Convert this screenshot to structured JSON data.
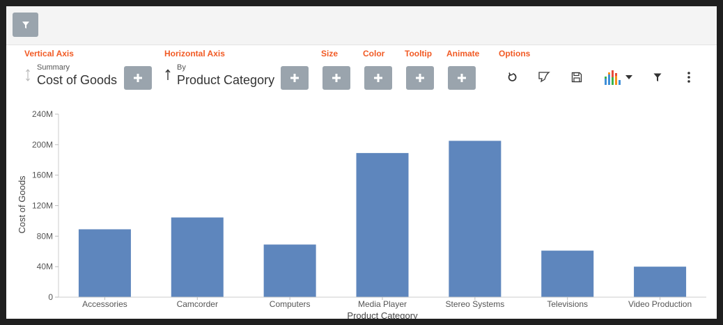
{
  "toolbar": {
    "filter_icon": "filter-icon"
  },
  "encodings": {
    "vertical_axis": {
      "label": "Vertical Axis",
      "sub": "Summary",
      "value": "Cost of Goods"
    },
    "horizontal_axis": {
      "label": "Horizontal Axis",
      "sub": "By",
      "value": "Product Category"
    },
    "size": {
      "label": "Size"
    },
    "color": {
      "label": "Color"
    },
    "tooltip": {
      "label": "Tooltip"
    },
    "animate": {
      "label": "Animate"
    },
    "options": {
      "label": "Options"
    }
  },
  "options_icons": [
    "refresh-icon",
    "annotate-icon",
    "save-icon",
    "chart-type-icon",
    "filter-icon",
    "more-vertical-icon"
  ],
  "colors": {
    "accent": "#f15a24",
    "bar": "#5e86bd",
    "button": "#9aa4ad"
  },
  "chart_data": {
    "type": "bar",
    "categories": [
      "Accessories",
      "Camcorder",
      "Computers",
      "Media Player",
      "Stereo Systems",
      "Televisions",
      "Video Production"
    ],
    "values": [
      89000000,
      104500000,
      69000000,
      189000000,
      205000000,
      61000000,
      40000000
    ],
    "xlabel": "Product Category",
    "ylabel": "Cost of Goods",
    "ylim": [
      0,
      240000000
    ],
    "yticks": [
      "0",
      "40M",
      "80M",
      "120M",
      "160M",
      "200M",
      "240M"
    ],
    "grid": false
  }
}
